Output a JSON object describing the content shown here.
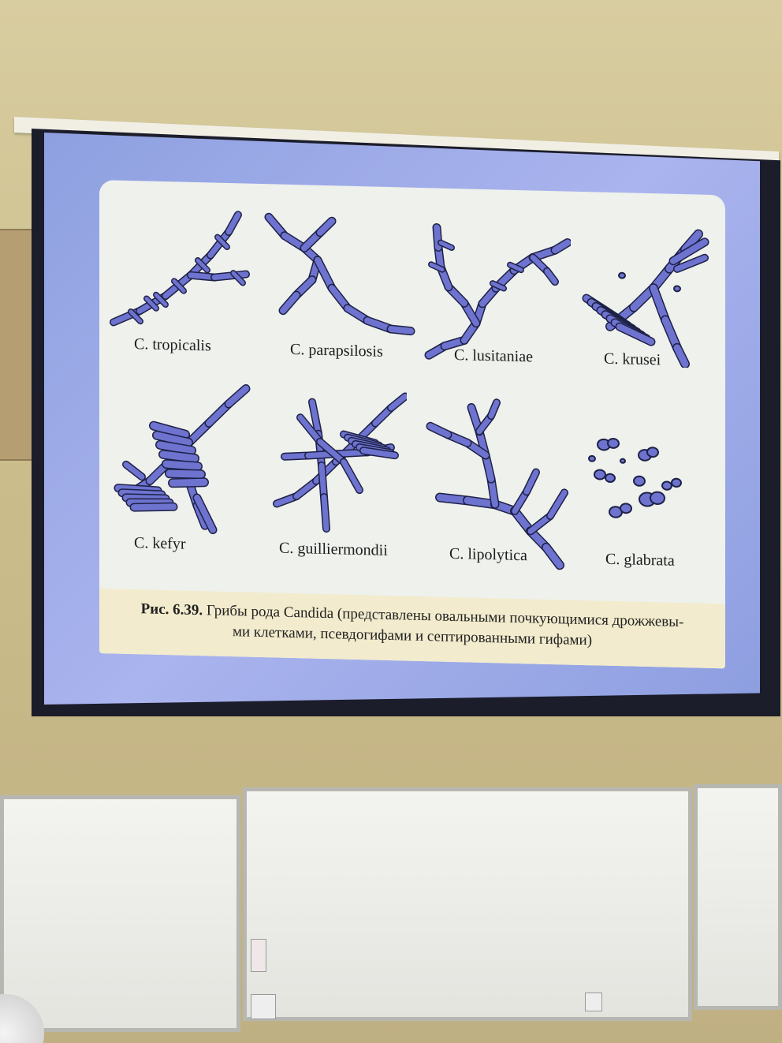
{
  "figure": {
    "panels": [
      {
        "id": "tropicalis",
        "label": "C. tropicalis"
      },
      {
        "id": "parapsilosis",
        "label": "C. parapsilosis"
      },
      {
        "id": "lusitaniae",
        "label": "C. lusitaniae"
      },
      {
        "id": "krusei",
        "label": "C. krusei"
      },
      {
        "id": "kefyr",
        "label": "C. kefyr"
      },
      {
        "id": "guilliermondii",
        "label": "C. guilliermondii"
      },
      {
        "id": "lipolytica",
        "label": "C. lipolytica"
      },
      {
        "id": "glabrata",
        "label": "C. glabrata"
      }
    ],
    "caption_prefix": "Рис. 6.39.",
    "caption_line1": "Грибы рода Candida (представлены овальными почкующимися дрожжевы-",
    "caption_line2": "ми клетками, псевдогифами и септированными гифами)"
  },
  "colors": {
    "cell_fill": "#6d73cf",
    "cell_stroke": "#1e2146",
    "slide_bg": "#eef1ec",
    "caption_bg": "#f2ebcd",
    "screen_glow": "#a4b0ec"
  }
}
